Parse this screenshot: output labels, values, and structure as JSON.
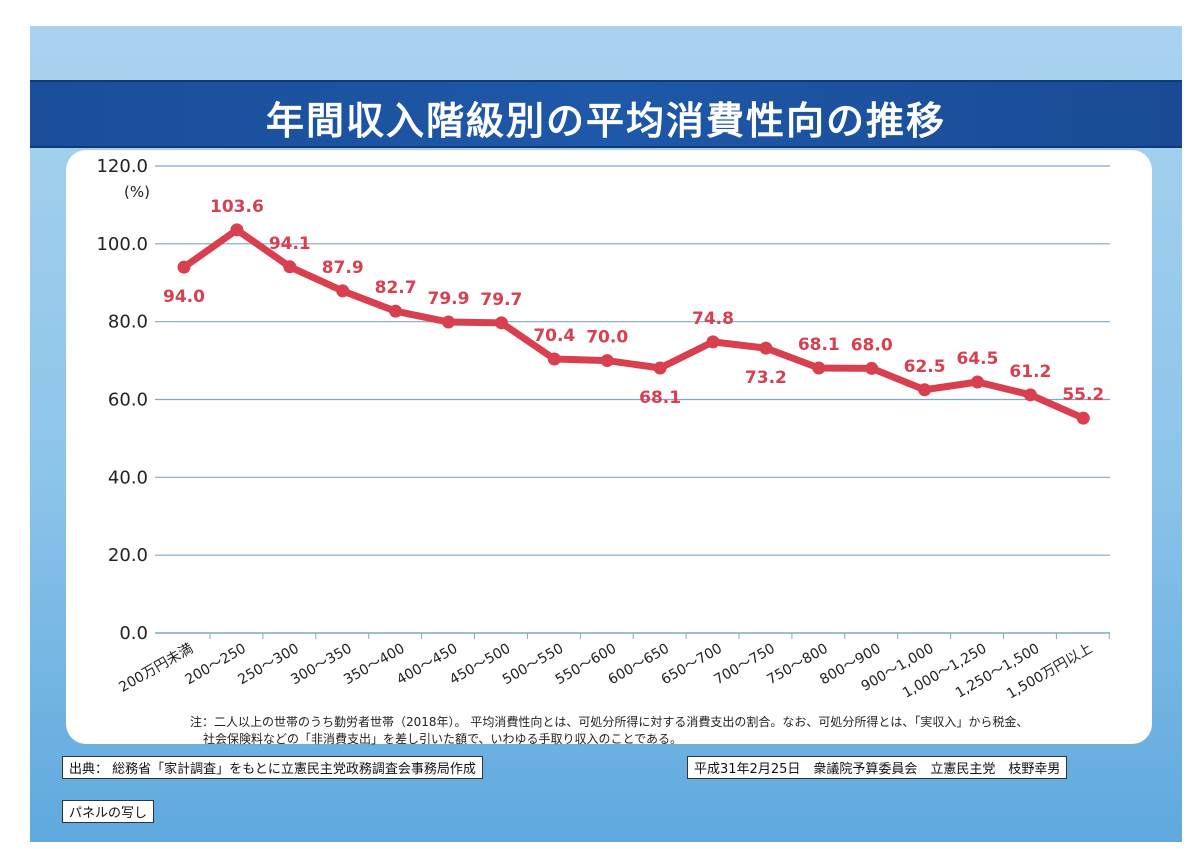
{
  "title": "年間収入階級別の平均消費性向の推移",
  "note_line1": "注：二人以上の世帯のうち勤労者世帯（2018年）。 平均消費性向とは、可処分所得に対する消費支出の割合。なお、可処分所得とは、「実収入」から税金、",
  "note_line2": "社会保険料などの「非消費支出」を差し引いた額で、いわゆる手取り収入のことである。",
  "source": "出典： 総務省「家計調査」をもとに立憲民主党政務調査会事務局作成",
  "date_line": "平成31年2月25日　衆議院予算委員会　立憲民主党　枝野幸男",
  "panel_label": "パネルの写し",
  "colors": {
    "line": "#d8404f",
    "title_bar": "#1e58a8",
    "grid": "#7fa8c9"
  },
  "chart_data": {
    "type": "line",
    "title": "年間収入階級別の平均消費性向の推移",
    "ylabel": "(%)",
    "ylim": [
      0,
      120
    ],
    "yticks": [
      "0.0",
      "20.0",
      "40.0",
      "60.0",
      "80.0",
      "100.0",
      "120.0"
    ],
    "grid": true,
    "categories": [
      "200万円未満",
      "200～250",
      "250～300",
      "300～350",
      "350～400",
      "400～450",
      "450～500",
      "500～550",
      "550～600",
      "600～650",
      "650～700",
      "700～750",
      "750～800",
      "800～900",
      "900～1,000",
      "1,000～1,250",
      "1,250～1,500",
      "1,500万円以上"
    ],
    "values": [
      94.0,
      103.6,
      94.1,
      87.9,
      82.7,
      79.9,
      79.7,
      70.4,
      70.0,
      68.1,
      74.8,
      73.2,
      68.1,
      68.0,
      62.5,
      64.5,
      61.2,
      55.2
    ],
    "labels": [
      "94.0",
      "103.6",
      "94.1",
      "87.9",
      "82.7",
      "79.9",
      "79.7",
      "70.4",
      "70.0",
      "68.1",
      "74.8",
      "73.2",
      "68.1",
      "68.0",
      "62.5",
      "64.5",
      "61.2",
      "55.2"
    ],
    "label_side": [
      "below",
      "above",
      "above",
      "above",
      "above",
      "above",
      "above",
      "above",
      "above",
      "below",
      "above",
      "below",
      "above",
      "above",
      "above",
      "above",
      "above",
      "above"
    ]
  }
}
